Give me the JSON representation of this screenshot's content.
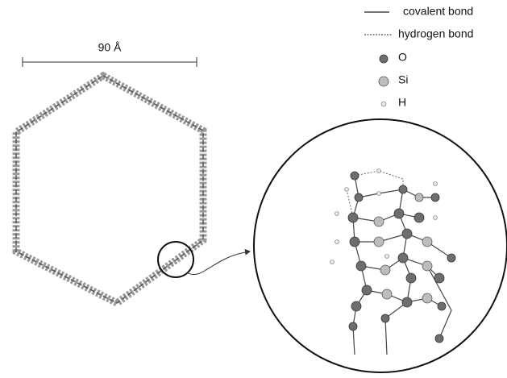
{
  "scale_bar": {
    "label": "90 Å"
  },
  "legend": {
    "items": [
      {
        "label": "covalent bond"
      },
      {
        "label": "hydrogen bond"
      },
      {
        "label": "O"
      },
      {
        "label": "Si"
      },
      {
        "label": "H"
      }
    ]
  }
}
